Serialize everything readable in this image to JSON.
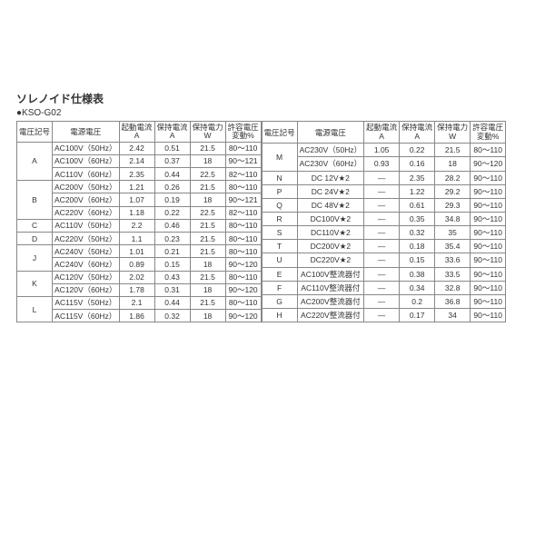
{
  "title": "ソレノイド仕様表",
  "subtitle": "●KSO-G02",
  "headers": [
    "電圧記号",
    "電源電圧",
    "起動電流\nA",
    "保持電流\nA",
    "保持電力\nW",
    "許容電圧\n変動%"
  ],
  "left": [
    {
      "code": "A",
      "rows": [
        [
          "AC100V（50Hz）",
          "2.42",
          "0.51",
          "21.5",
          "80～110"
        ],
        [
          "AC100V（60Hz）",
          "2.14",
          "0.37",
          "18",
          "90～121"
        ],
        [
          "AC110V（60Hz）",
          "2.35",
          "0.44",
          "22.5",
          "82～110"
        ]
      ]
    },
    {
      "code": "B",
      "rows": [
        [
          "AC200V（50Hz）",
          "1.21",
          "0.26",
          "21.5",
          "80～110"
        ],
        [
          "AC200V（60Hz）",
          "1.07",
          "0.19",
          "18",
          "90～121"
        ],
        [
          "AC220V（60Hz）",
          "1.18",
          "0.22",
          "22.5",
          "82～110"
        ]
      ]
    },
    {
      "code": "C",
      "rows": [
        [
          "AC110V（50Hz）",
          "2.2",
          "0.46",
          "21.5",
          "80～110"
        ]
      ]
    },
    {
      "code": "D",
      "rows": [
        [
          "AC220V（50Hz）",
          "1.1",
          "0.23",
          "21.5",
          "80～110"
        ]
      ]
    },
    {
      "code": "J",
      "rows": [
        [
          "AC240V（50Hz）",
          "1.01",
          "0.21",
          "21.5",
          "80～110"
        ],
        [
          "AC240V（60Hz）",
          "0.89",
          "0.15",
          "18",
          "90～120"
        ]
      ]
    },
    {
      "code": "K",
      "rows": [
        [
          "AC120V（50Hz）",
          "2.02",
          "0.43",
          "21.5",
          "80～110"
        ],
        [
          "AC120V（60Hz）",
          "1.78",
          "0.31",
          "18",
          "90～120"
        ]
      ]
    },
    {
      "code": "L",
      "rows": [
        [
          "AC115V（50Hz）",
          "2.1",
          "0.44",
          "21.5",
          "80～110"
        ],
        [
          "AC115V（60Hz）",
          "1.86",
          "0.32",
          "18",
          "90～120"
        ]
      ]
    }
  ],
  "right": [
    {
      "code": "M",
      "rows": [
        [
          "AC230V（50Hz）",
          "1.05",
          "0.22",
          "21.5",
          "80～110"
        ],
        [
          "AC230V（60Hz）",
          "0.93",
          "0.16",
          "18",
          "90～120"
        ]
      ]
    },
    {
      "code": "N",
      "rows": [
        [
          "DC 12V★2",
          "—",
          "2.35",
          "28.2",
          "90～110"
        ]
      ]
    },
    {
      "code": "P",
      "rows": [
        [
          "DC 24V★2",
          "—",
          "1.22",
          "29.2",
          "90～110"
        ]
      ]
    },
    {
      "code": "Q",
      "rows": [
        [
          "DC 48V★2",
          "—",
          "0.61",
          "29.3",
          "90～110"
        ]
      ]
    },
    {
      "code": "R",
      "rows": [
        [
          "DC100V★2",
          "—",
          "0.35",
          "34.8",
          "90～110"
        ]
      ]
    },
    {
      "code": "S",
      "rows": [
        [
          "DC110V★2",
          "—",
          "0.32",
          "35",
          "90～110"
        ]
      ]
    },
    {
      "code": "T",
      "rows": [
        [
          "DC200V★2",
          "—",
          "0.18",
          "35.4",
          "90～110"
        ]
      ]
    },
    {
      "code": "U",
      "rows": [
        [
          "DC220V★2",
          "—",
          "0.15",
          "33.6",
          "90～110"
        ]
      ]
    },
    {
      "code": "E",
      "rows": [
        [
          "AC100V整流器付",
          "—",
          "0.38",
          "33.5",
          "90～110"
        ]
      ]
    },
    {
      "code": "F",
      "rows": [
        [
          "AC110V整流器付",
          "—",
          "0.34",
          "32.8",
          "90～110"
        ]
      ]
    },
    {
      "code": "G",
      "rows": [
        [
          "AC200V整流器付",
          "—",
          "0.2",
          "36.8",
          "90～110"
        ]
      ]
    },
    {
      "code": "H",
      "rows": [
        [
          "AC220V整流器付",
          "—",
          "0.17",
          "34",
          "90～110"
        ]
      ]
    }
  ]
}
